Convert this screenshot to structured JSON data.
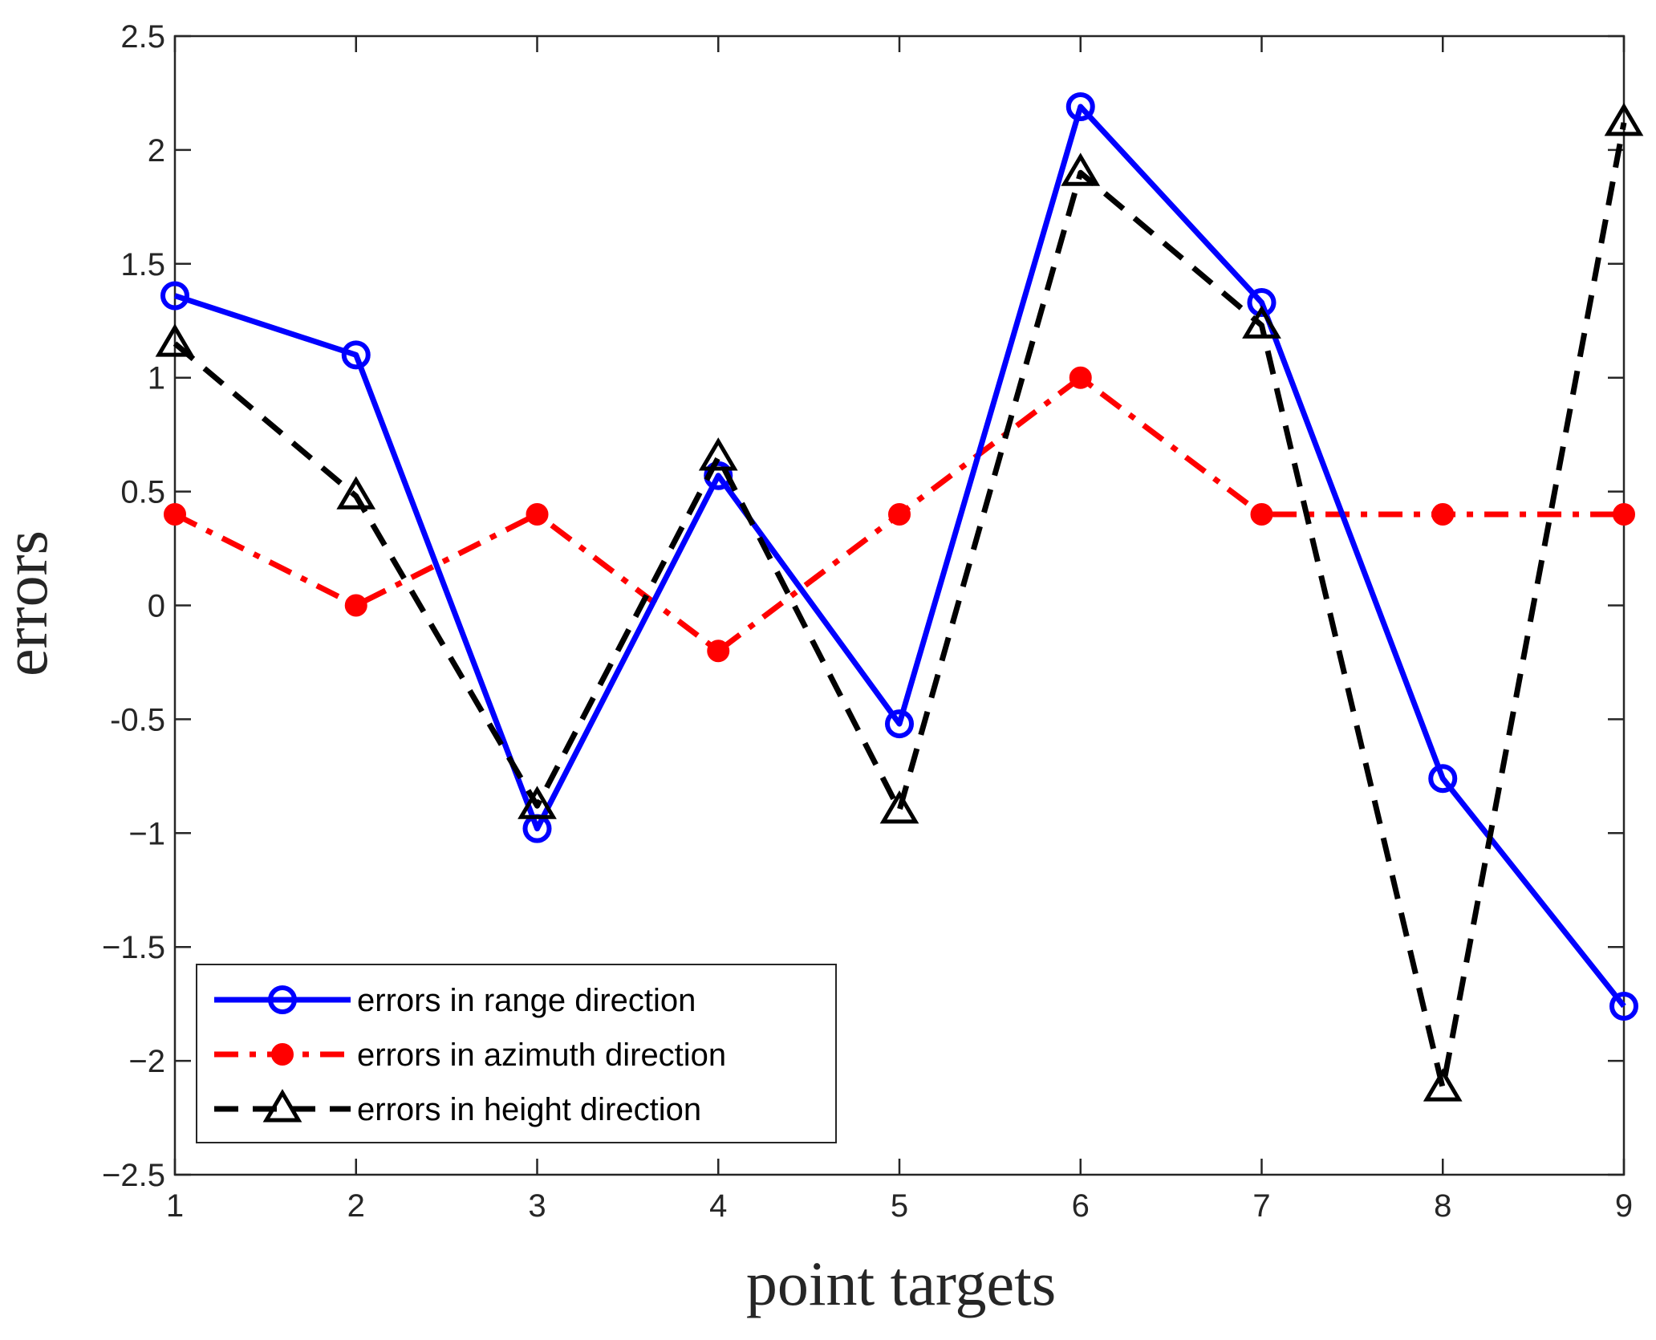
{
  "chart_data": {
    "type": "line",
    "title": "",
    "xlabel": "point targets",
    "ylabel": "errors",
    "x": [
      1,
      2,
      3,
      4,
      5,
      6,
      7,
      8,
      9
    ],
    "xlim": [
      1,
      9
    ],
    "ylim": [
      -2.5,
      2.5
    ],
    "x_ticks": [
      "1",
      "2",
      "3",
      "4",
      "5",
      "6",
      "7",
      "8",
      "9"
    ],
    "y_ticks": [
      {
        "value": -2.5,
        "label": "−2.5"
      },
      {
        "value": -2,
        "label": "−2"
      },
      {
        "value": -1.5,
        "label": "−1.5"
      },
      {
        "value": -1,
        "label": "−1"
      },
      {
        "value": -0.5,
        "label": "-0.5"
      },
      {
        "value": 0,
        "label": "0"
      },
      {
        "value": 0.5,
        "label": "0.5"
      },
      {
        "value": 1,
        "label": "1"
      },
      {
        "value": 1.5,
        "label": "1.5"
      },
      {
        "value": 2,
        "label": "2"
      },
      {
        "value": 2.5,
        "label": "2.5"
      }
    ],
    "grid": false,
    "legend_position": "bottom-left",
    "series": [
      {
        "name": "errors in range direction",
        "values": [
          1.36,
          1.1,
          -0.98,
          0.57,
          -0.52,
          2.19,
          1.33,
          -0.76,
          -1.76
        ],
        "color": "#0000ff",
        "line_style": "solid",
        "marker": "open-circle"
      },
      {
        "name": "errors in azimuth direction",
        "values": [
          0.4,
          0.0,
          0.4,
          -0.2,
          0.4,
          1.0,
          0.4,
          0.4,
          0.4
        ],
        "color": "#ff0000",
        "line_style": "dash-dot",
        "marker": "filled-circle"
      },
      {
        "name": "errors in height direction",
        "values": [
          1.15,
          0.48,
          -0.88,
          0.65,
          -0.9,
          1.9,
          1.23,
          -2.12,
          2.12
        ],
        "color": "#000000",
        "line_style": "dashed",
        "marker": "open-triangle"
      }
    ]
  }
}
